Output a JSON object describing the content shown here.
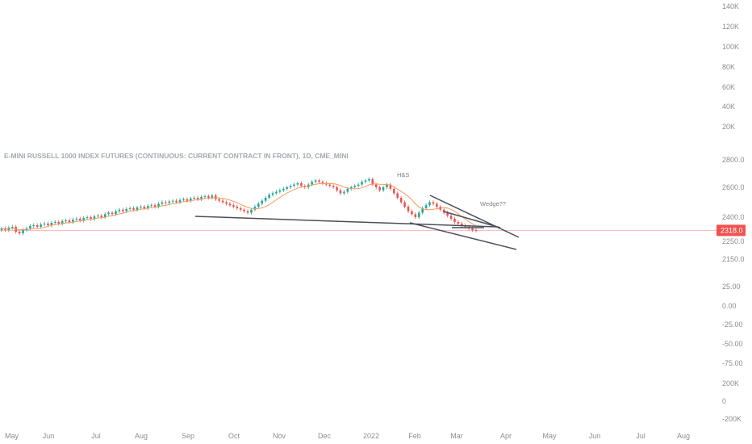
{
  "chart_data": {
    "type": "candlestick",
    "title": "E-MINI RUSSELL 1000 INDEX FUTURES (CONTINUOUS: CURRENT CONTRACT IN FRONT), 1D, CME_MINI",
    "x_ticks": [
      "May",
      "Jun",
      "Jul",
      "Aug",
      "Sep",
      "Oct",
      "Nov",
      "Dec",
      "2022",
      "Feb",
      "Mar",
      "Apr",
      "May",
      "Jun",
      "Jul",
      "Aug"
    ],
    "y_axis_panels": [
      {
        "pane": "volume-top",
        "ticks": [
          "140K",
          "120K",
          "100K",
          "80K",
          "60K",
          "40K",
          "20K"
        ]
      },
      {
        "pane": "price",
        "ticks": [
          "2800.0",
          "2600.0",
          "2400.0",
          "2250.0",
          "2150.0"
        ]
      },
      {
        "pane": "oscillator",
        "ticks": [
          "25.00",
          "0.00",
          "-25.00",
          "-50.00",
          "-75.00"
        ]
      },
      {
        "pane": "volume-bottom",
        "ticks": [
          "200K",
          "0",
          "-200K"
        ]
      }
    ],
    "last_price": "2318.0",
    "last_price_value": 2318,
    "series": [
      {
        "name": "price",
        "type": "candlestick",
        "close": [
          2330,
          2320,
          2335,
          2340,
          2310,
          2300,
          2320,
          2330,
          2345,
          2350,
          2340,
          2355,
          2360,
          2350,
          2365,
          2370,
          2360,
          2375,
          2380,
          2370,
          2385,
          2390,
          2380,
          2395,
          2400,
          2390,
          2405,
          2410,
          2400,
          2420,
          2430,
          2420,
          2440,
          2450,
          2440,
          2455,
          2460,
          2450,
          2465,
          2470,
          2460,
          2475,
          2480,
          2470,
          2490,
          2500,
          2495,
          2505,
          2510,
          2500,
          2515,
          2520,
          2510,
          2525,
          2530,
          2520,
          2535,
          2540,
          2530,
          2545,
          2520,
          2510,
          2500,
          2490,
          2480,
          2470,
          2460,
          2450,
          2440,
          2430,
          2450,
          2470,
          2490,
          2510,
          2530,
          2550,
          2560,
          2570,
          2580,
          2590,
          2600,
          2610,
          2620,
          2630,
          2610,
          2600,
          2620,
          2640,
          2650,
          2640,
          2630,
          2620,
          2610,
          2600,
          2580,
          2560,
          2570,
          2590,
          2600,
          2610,
          2620,
          2640,
          2650,
          2660,
          2620,
          2600,
          2580,
          2600,
          2620,
          2590,
          2560,
          2530,
          2500,
          2470,
          2440,
          2420,
          2400,
          2430,
          2460,
          2480,
          2500,
          2490,
          2470,
          2450,
          2430,
          2410,
          2390,
          2370,
          2360,
          2350,
          2340,
          2330,
          2320,
          2318
        ],
        "open": [
          2320,
          2330,
          2320,
          2335,
          2340,
          2310,
          2300,
          2320,
          2330,
          2345,
          2350,
          2340,
          2355,
          2360,
          2350,
          2365,
          2370,
          2360,
          2375,
          2380,
          2370,
          2385,
          2390,
          2380,
          2395,
          2400,
          2390,
          2405,
          2410,
          2400,
          2420,
          2430,
          2420,
          2440,
          2450,
          2440,
          2455,
          2460,
          2450,
          2465,
          2470,
          2460,
          2475,
          2480,
          2470,
          2490,
          2500,
          2495,
          2505,
          2510,
          2500,
          2515,
          2520,
          2510,
          2525,
          2530,
          2520,
          2535,
          2540,
          2530,
          2545,
          2520,
          2510,
          2500,
          2490,
          2480,
          2470,
          2460,
          2450,
          2440,
          2430,
          2450,
          2470,
          2490,
          2510,
          2530,
          2550,
          2560,
          2570,
          2580,
          2590,
          2600,
          2610,
          2620,
          2630,
          2610,
          2600,
          2620,
          2640,
          2650,
          2640,
          2630,
          2620,
          2610,
          2600,
          2580,
          2560,
          2570,
          2590,
          2600,
          2610,
          2620,
          2640,
          2650,
          2660,
          2620,
          2600,
          2580,
          2600,
          2620,
          2590,
          2560,
          2530,
          2500,
          2470,
          2440,
          2420,
          2400,
          2430,
          2460,
          2480,
          2500,
          2490,
          2470,
          2450,
          2430,
          2410,
          2390,
          2370,
          2360,
          2350,
          2340,
          2330,
          2320
        ]
      }
    ],
    "annotations": [
      {
        "text": "H&S"
      },
      {
        "text": "Wedge??"
      }
    ],
    "grid": false,
    "legend": "none",
    "colors": {
      "up": "#26a69a",
      "down": "#ef5350",
      "ma": "#f59a5a",
      "trendline": "#4a4e5a",
      "price_line": "#f7a8a8",
      "badge": "#ef5350"
    }
  }
}
